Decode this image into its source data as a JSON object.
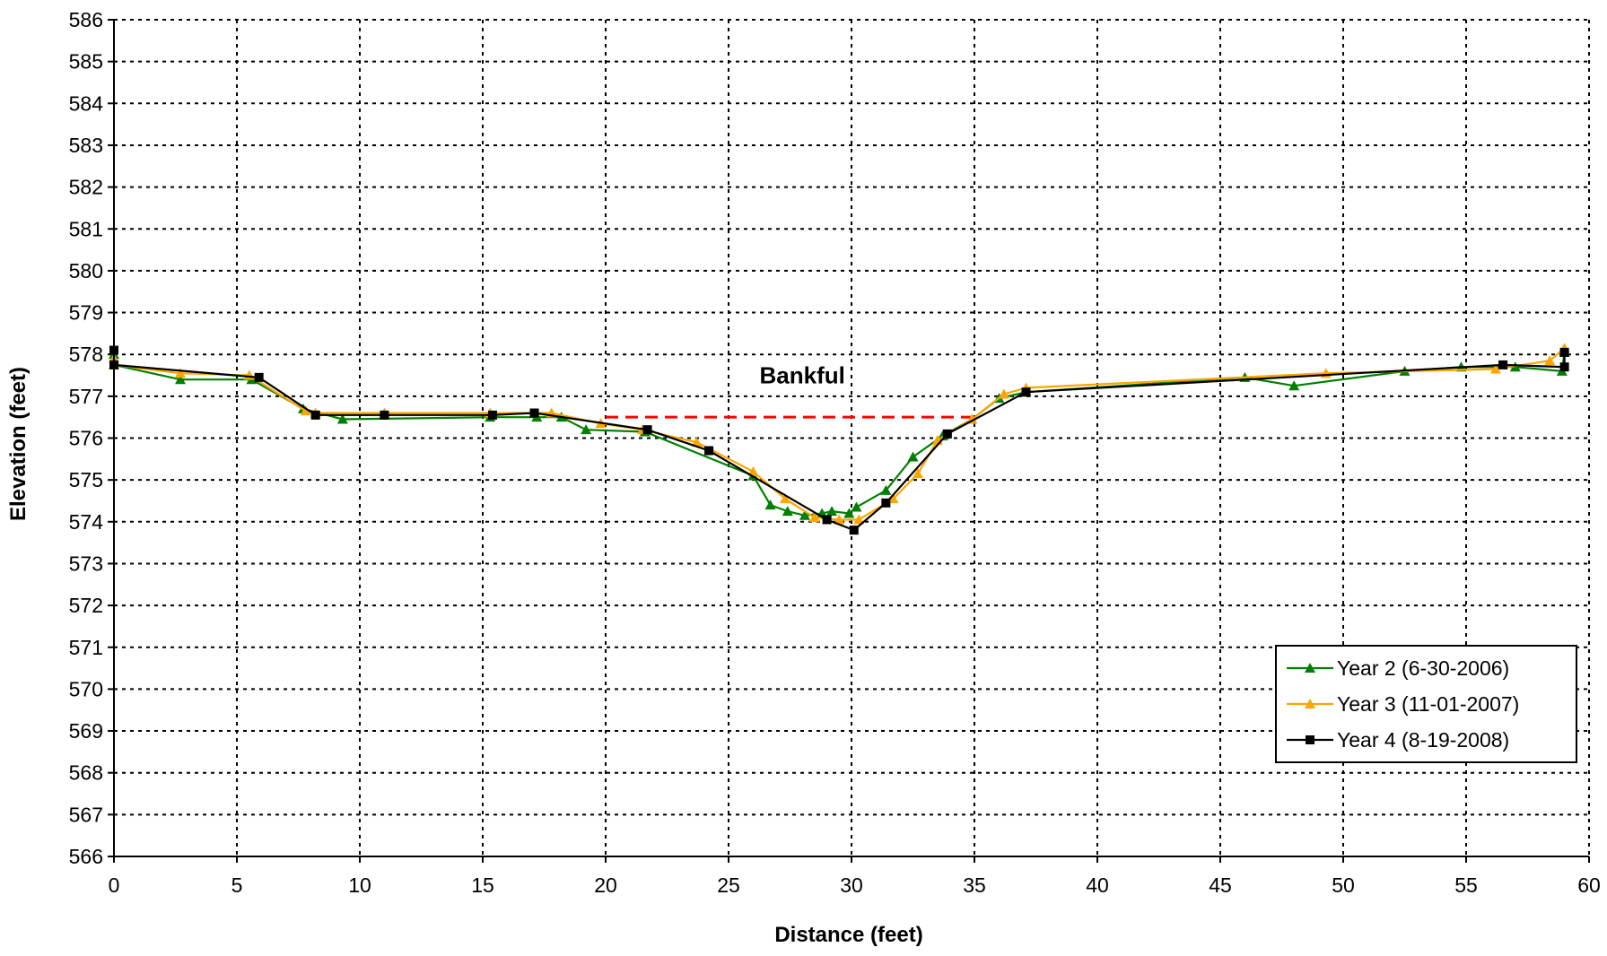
{
  "chart_data": {
    "type": "line",
    "title": "",
    "xlabel": "Distance (feet)",
    "ylabel": "Elevation (feet)",
    "xlim": [
      0,
      60
    ],
    "ylim": [
      566,
      586
    ],
    "x_ticks": [
      0,
      5,
      10,
      15,
      20,
      25,
      30,
      35,
      40,
      45,
      50,
      55,
      60
    ],
    "y_ticks": [
      566,
      567,
      568,
      569,
      570,
      571,
      572,
      573,
      574,
      575,
      576,
      577,
      578,
      579,
      580,
      581,
      582,
      583,
      584,
      585,
      586
    ],
    "grid": true,
    "legend_position": "bottom-right",
    "series": [
      {
        "name": "Year 2 (6-30-2006)",
        "color": "#008000",
        "marker": "triangle",
        "points": [
          [
            0,
            578.0
          ],
          [
            0,
            577.75
          ],
          [
            2.7,
            577.4
          ],
          [
            5.6,
            577.4
          ],
          [
            7.7,
            576.7
          ],
          [
            9.3,
            576.45
          ],
          [
            15.3,
            576.5
          ],
          [
            17.2,
            576.5
          ],
          [
            18.2,
            576.5
          ],
          [
            19.2,
            576.2
          ],
          [
            21.6,
            576.15
          ],
          [
            26.0,
            575.1
          ],
          [
            26.7,
            574.4
          ],
          [
            27.4,
            574.25
          ],
          [
            28.1,
            574.15
          ],
          [
            28.8,
            574.2
          ],
          [
            29.2,
            574.25
          ],
          [
            29.9,
            574.2
          ],
          [
            30.2,
            574.35
          ],
          [
            31.4,
            574.75
          ],
          [
            32.5,
            575.55
          ],
          [
            33.7,
            576.05
          ],
          [
            34.9,
            576.45
          ],
          [
            36.0,
            576.95
          ],
          [
            37.1,
            577.1
          ],
          [
            46.0,
            577.45
          ],
          [
            48.0,
            577.25
          ],
          [
            52.5,
            577.6
          ],
          [
            54.8,
            577.7
          ],
          [
            57.0,
            577.7
          ],
          [
            58.9,
            577.6
          ],
          [
            59.0,
            578.05
          ]
        ]
      },
      {
        "name": "Year 3 (11-01-2007)",
        "color": "#FFA500",
        "marker": "triangle",
        "points": [
          [
            0,
            577.9
          ],
          [
            0,
            577.75
          ],
          [
            2.7,
            577.55
          ],
          [
            5.5,
            577.5
          ],
          [
            7.8,
            576.65
          ],
          [
            8.2,
            576.6
          ],
          [
            11.0,
            576.6
          ],
          [
            15.3,
            576.6
          ],
          [
            17.8,
            576.6
          ],
          [
            19.8,
            576.35
          ],
          [
            21.5,
            576.2
          ],
          [
            23.7,
            575.9
          ],
          [
            26.0,
            575.2
          ],
          [
            27.3,
            574.55
          ],
          [
            28.5,
            574.1
          ],
          [
            29.5,
            574.05
          ],
          [
            30.3,
            574.05
          ],
          [
            31.7,
            574.55
          ],
          [
            32.7,
            575.15
          ],
          [
            33.5,
            575.95
          ],
          [
            34.9,
            576.45
          ],
          [
            36.2,
            577.05
          ],
          [
            37.1,
            577.2
          ],
          [
            49.3,
            577.55
          ],
          [
            56.2,
            577.65
          ],
          [
            58.4,
            577.85
          ],
          [
            59.0,
            578.15
          ]
        ]
      },
      {
        "name": "Year 4 (8-19-2008)",
        "color": "#000000",
        "marker": "square",
        "points": [
          [
            0,
            578.1
          ],
          [
            0,
            577.75
          ],
          [
            5.9,
            577.45
          ],
          [
            8.2,
            576.55
          ],
          [
            11.0,
            576.55
          ],
          [
            15.4,
            576.55
          ],
          [
            17.1,
            576.6
          ],
          [
            21.7,
            576.2
          ],
          [
            24.2,
            575.7
          ],
          [
            29.0,
            574.05
          ],
          [
            30.1,
            573.8
          ],
          [
            31.4,
            574.45
          ],
          [
            33.9,
            576.1
          ],
          [
            37.1,
            577.1
          ],
          [
            56.5,
            577.75
          ],
          [
            59.0,
            577.7
          ],
          [
            59.0,
            578.05
          ]
        ]
      }
    ],
    "reference_lines": [
      {
        "name": "Bankful",
        "y": 576.5,
        "x_start": 20,
        "x_end": 35,
        "color": "#FF0000",
        "style": "dashed"
      }
    ],
    "annotations": [
      {
        "text": "Bankful",
        "x": 28,
        "y": 577.5
      }
    ]
  }
}
